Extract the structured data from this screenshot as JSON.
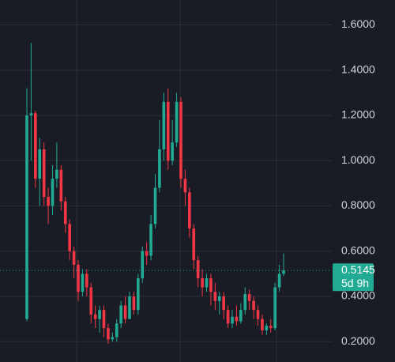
{
  "chart_data": {
    "type": "candlestick",
    "open": [
      0.3,
      1.2,
      1.21,
      0.92,
      1.05,
      0.84,
      0.8,
      0.92,
      0.96,
      0.82,
      0.72,
      0.6,
      0.54,
      0.42,
      0.5,
      0.44,
      0.32,
      0.3,
      0.34,
      0.26,
      0.21,
      0.22,
      0.28,
      0.36,
      0.3,
      0.4,
      0.34,
      0.48,
      0.6,
      0.58,
      0.72,
      0.88,
      1.05,
      1.26,
      1.0,
      1.08,
      1.26,
      0.92,
      0.86,
      0.7,
      0.56,
      0.48,
      0.44,
      0.48,
      0.42,
      0.38,
      0.4,
      0.34,
      0.28,
      0.31,
      0.29,
      0.34,
      0.41,
      0.38,
      0.34,
      0.3,
      0.25,
      0.27,
      0.26,
      0.44,
      0.5
    ],
    "high": [
      1.32,
      1.52,
      1.22,
      1.1,
      1.08,
      0.88,
      0.98,
      1.08,
      0.98,
      0.84,
      0.74,
      0.62,
      0.56,
      0.52,
      0.52,
      0.46,
      0.36,
      0.36,
      0.36,
      0.28,
      0.24,
      0.3,
      0.38,
      0.4,
      0.42,
      0.42,
      0.5,
      0.62,
      0.64,
      0.76,
      0.94,
      1.18,
      1.3,
      1.32,
      1.18,
      1.3,
      1.28,
      0.96,
      0.88,
      0.72,
      0.58,
      0.52,
      0.5,
      0.5,
      0.46,
      0.42,
      0.42,
      0.36,
      0.34,
      0.36,
      0.37,
      0.44,
      0.43,
      0.4,
      0.36,
      0.32,
      0.28,
      0.3,
      0.46,
      0.54,
      0.59
    ],
    "low": [
      0.29,
      1.0,
      0.88,
      0.8,
      0.8,
      0.72,
      0.76,
      0.88,
      0.78,
      0.68,
      0.56,
      0.48,
      0.38,
      0.4,
      0.4,
      0.28,
      0.26,
      0.24,
      0.22,
      0.19,
      0.2,
      0.2,
      0.26,
      0.28,
      0.3,
      0.32,
      0.32,
      0.46,
      0.54,
      0.56,
      0.7,
      0.86,
      1.0,
      0.96,
      0.98,
      1.06,
      0.88,
      0.8,
      0.66,
      0.52,
      0.44,
      0.4,
      0.42,
      0.36,
      0.34,
      0.32,
      0.3,
      0.26,
      0.26,
      0.27,
      0.28,
      0.32,
      0.34,
      0.3,
      0.27,
      0.23,
      0.23,
      0.24,
      0.25,
      0.42,
      0.49
    ],
    "close": [
      1.2,
      1.21,
      0.92,
      1.05,
      0.84,
      0.8,
      0.92,
      0.96,
      0.82,
      0.72,
      0.6,
      0.54,
      0.42,
      0.5,
      0.44,
      0.32,
      0.3,
      0.34,
      0.26,
      0.21,
      0.22,
      0.28,
      0.36,
      0.3,
      0.4,
      0.34,
      0.48,
      0.6,
      0.58,
      0.72,
      0.88,
      1.05,
      1.26,
      1.0,
      1.08,
      1.26,
      0.92,
      0.86,
      0.7,
      0.56,
      0.48,
      0.44,
      0.48,
      0.42,
      0.38,
      0.4,
      0.34,
      0.28,
      0.31,
      0.29,
      0.34,
      0.41,
      0.38,
      0.34,
      0.3,
      0.25,
      0.27,
      0.26,
      0.44,
      0.5,
      0.5145
    ],
    "up_color": "#22ab94",
    "down_color": "#f23645",
    "ylim": [
      0.11,
      1.71
    ],
    "yticks": [
      {
        "value": 0.2,
        "label": "0.2000"
      },
      {
        "value": 0.4,
        "label": "0.4000"
      },
      {
        "value": 0.6,
        "label": "0.6000"
      },
      {
        "value": 0.8,
        "label": "0.8000"
      },
      {
        "value": 1.0,
        "label": "1.0000"
      },
      {
        "value": 1.2,
        "label": "1.2000"
      },
      {
        "value": 1.4,
        "label": "1.4000"
      },
      {
        "value": 1.6,
        "label": "1.6000"
      }
    ],
    "grid": true,
    "last_price": {
      "value": 0.5145,
      "label": "0.5145"
    },
    "countdown": "5d 9h"
  }
}
